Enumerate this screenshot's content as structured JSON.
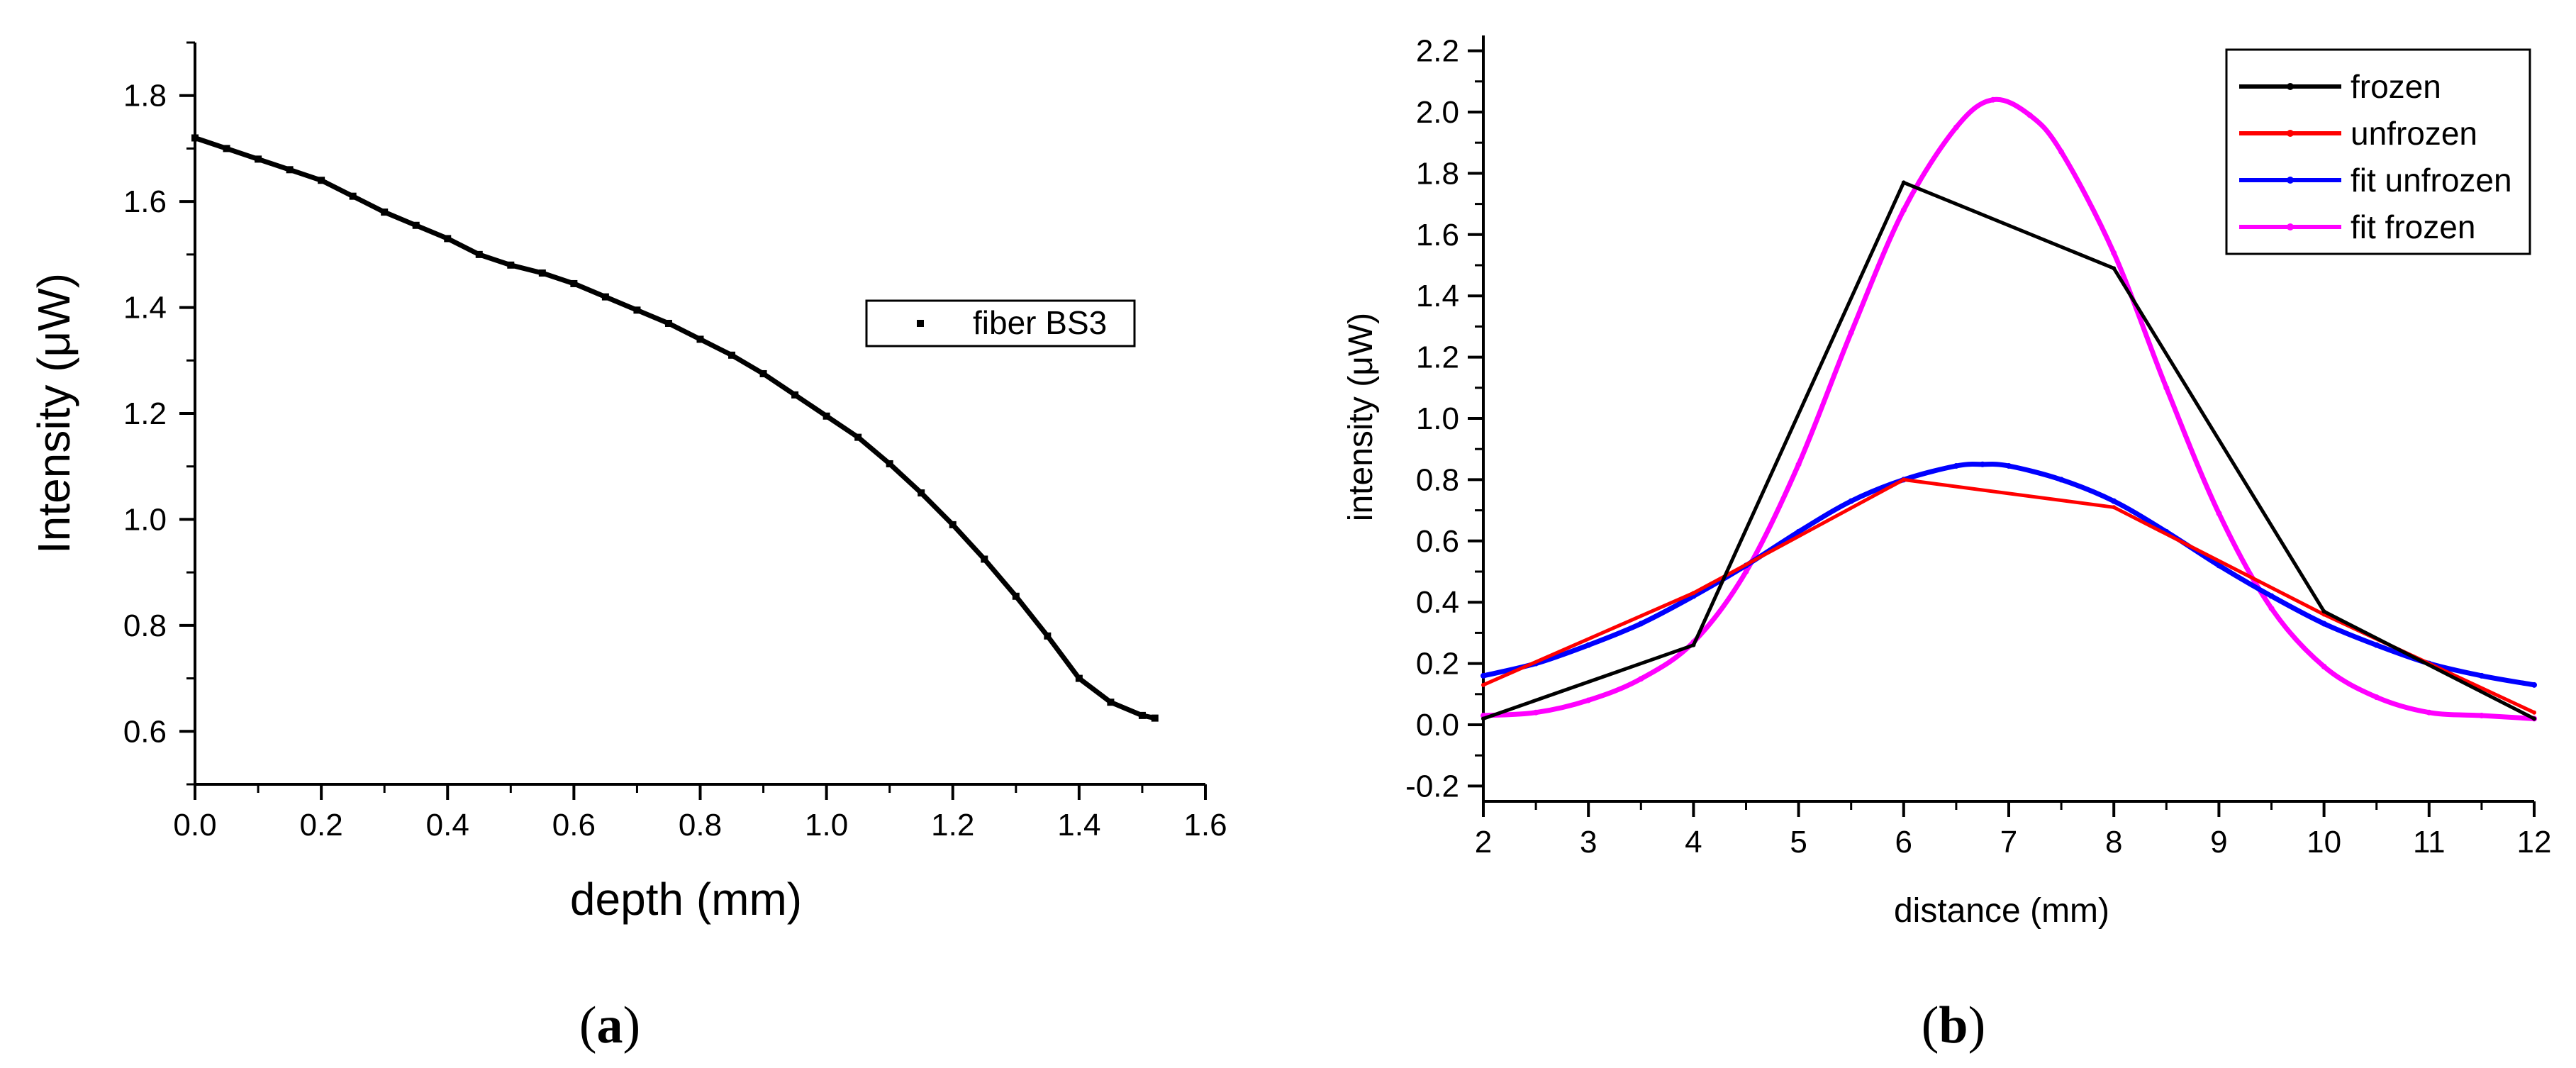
{
  "chart_data": [
    {
      "type": "scatter",
      "panel_label": "a",
      "xlabel": "depth (mm)",
      "ylabel": "Intensity (μW)",
      "xlim": [
        0.0,
        1.6
      ],
      "ylim": [
        0.5,
        1.9
      ],
      "xticks": [
        "0.0",
        "0.2",
        "0.4",
        "0.6",
        "0.8",
        "1.0",
        "1.2",
        "1.4",
        "1.6"
      ],
      "yticks": [
        "0.6",
        "0.8",
        "1.0",
        "1.2",
        "1.4",
        "1.6",
        "1.8"
      ],
      "legend_position": "center-right",
      "series": [
        {
          "name": "fiber BS3",
          "color": "#000000",
          "x": [
            0.0,
            0.05,
            0.1,
            0.15,
            0.2,
            0.25,
            0.3,
            0.35,
            0.4,
            0.45,
            0.5,
            0.55,
            0.6,
            0.65,
            0.7,
            0.75,
            0.8,
            0.85,
            0.9,
            0.95,
            1.0,
            1.05,
            1.1,
            1.15,
            1.2,
            1.25,
            1.3,
            1.35,
            1.4,
            1.45,
            1.5,
            1.52
          ],
          "y": [
            1.72,
            1.7,
            1.68,
            1.66,
            1.64,
            1.61,
            1.58,
            1.555,
            1.53,
            1.5,
            1.48,
            1.465,
            1.445,
            1.42,
            1.395,
            1.37,
            1.34,
            1.31,
            1.275,
            1.235,
            1.195,
            1.155,
            1.105,
            1.05,
            0.99,
            0.925,
            0.855,
            0.78,
            0.7,
            0.655,
            0.63,
            0.625
          ]
        }
      ]
    },
    {
      "type": "line",
      "panel_label": "b",
      "xlabel": "distance (mm)",
      "ylabel": "intensity (μW)",
      "xlim": [
        2,
        12
      ],
      "ylim": [
        -0.25,
        2.25
      ],
      "xticks": [
        "2",
        "3",
        "4",
        "5",
        "6",
        "7",
        "8",
        "9",
        "10",
        "11",
        "12"
      ],
      "yticks": [
        "-0.2",
        "0.0",
        "0.2",
        "0.4",
        "0.6",
        "0.8",
        "1.0",
        "1.2",
        "1.4",
        "1.6",
        "1.8",
        "2.0",
        "2.2"
      ],
      "legend_position": "top-right",
      "series": [
        {
          "name": "frozen",
          "color": "#000000",
          "x": [
            2,
            4,
            6,
            8,
            10,
            12
          ],
          "y": [
            0.02,
            0.26,
            1.77,
            1.49,
            0.37,
            0.02
          ]
        },
        {
          "name": "unfrozen",
          "color": "#ff0000",
          "x": [
            2,
            4,
            6,
            8,
            10,
            12
          ],
          "y": [
            0.13,
            0.43,
            0.8,
            0.71,
            0.36,
            0.04
          ]
        },
        {
          "name": "fit unfrozen",
          "color": "#0000ff",
          "x": [
            2,
            2.5,
            3,
            3.5,
            4,
            4.5,
            5,
            5.5,
            6,
            6.5,
            6.75,
            7,
            7.5,
            8,
            8.5,
            9,
            9.5,
            10,
            10.5,
            11,
            11.5,
            12
          ],
          "y": [
            0.16,
            0.2,
            0.26,
            0.33,
            0.42,
            0.52,
            0.63,
            0.73,
            0.8,
            0.845,
            0.85,
            0.845,
            0.8,
            0.73,
            0.63,
            0.52,
            0.42,
            0.33,
            0.26,
            0.2,
            0.16,
            0.13
          ]
        },
        {
          "name": "fit frozen",
          "color": "#ff00ff",
          "x": [
            2,
            2.5,
            3,
            3.5,
            4,
            4.5,
            5,
            5.5,
            6,
            6.5,
            6.85,
            7.2,
            7.5,
            8,
            8.5,
            9,
            9.5,
            10,
            10.5,
            11,
            11.5,
            12
          ],
          "y": [
            0.03,
            0.04,
            0.08,
            0.15,
            0.27,
            0.5,
            0.85,
            1.28,
            1.68,
            1.95,
            2.04,
            1.99,
            1.87,
            1.54,
            1.1,
            0.69,
            0.38,
            0.19,
            0.09,
            0.04,
            0.03,
            0.02
          ]
        }
      ]
    }
  ]
}
